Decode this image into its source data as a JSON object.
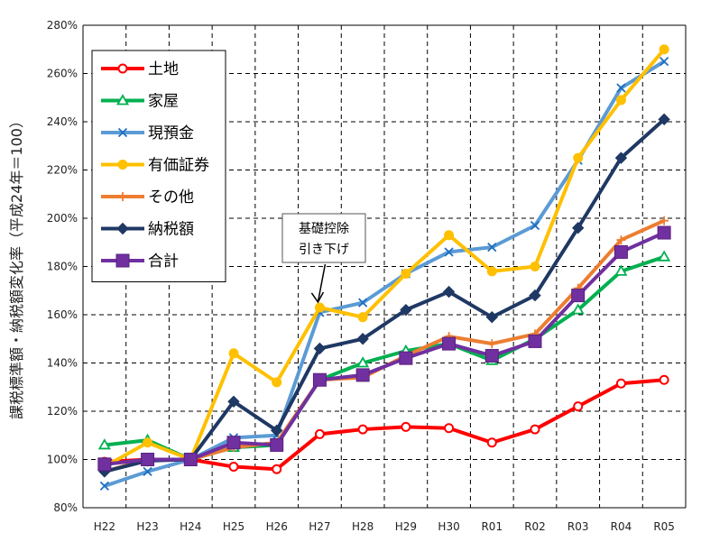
{
  "chart_data": {
    "type": "line",
    "title": "",
    "xlabel": "",
    "ylabel": "課税標準額・納税額変化率（平成24年＝100）",
    "categories": [
      "H22",
      "H23",
      "H24",
      "H25",
      "H26",
      "H27",
      "H28",
      "H29",
      "H30",
      "R01",
      "R02",
      "R03",
      "R04",
      "R05"
    ],
    "ylim": [
      80,
      280
    ],
    "yticks": [
      80,
      100,
      120,
      140,
      160,
      180,
      200,
      220,
      240,
      260,
      280
    ],
    "ytick_labels": [
      "80%",
      "100%",
      "120%",
      "140%",
      "160%",
      "180%",
      "200%",
      "220%",
      "240%",
      "260%",
      "280%"
    ],
    "grid": true,
    "legend_position": "top-left",
    "series": [
      {
        "name": "土地",
        "color": "#ff0000",
        "marker": "circle-open",
        "values": [
          99,
          100,
          100,
          97,
          96,
          110.5,
          112.5,
          113.5,
          113,
          107,
          112.5,
          122,
          131.5,
          133
        ]
      },
      {
        "name": "家屋",
        "color": "#00b050",
        "marker": "triangle-open",
        "values": [
          106,
          108,
          100,
          105,
          106,
          133,
          140,
          145,
          148,
          141,
          150,
          162,
          178,
          184
        ]
      },
      {
        "name": "現預金",
        "color": "#5b9bd5",
        "marker": "x",
        "values": [
          89,
          95,
          100,
          109,
          110,
          161,
          165,
          177,
          186,
          188,
          197,
          224,
          254,
          265
        ]
      },
      {
        "name": "有価証券",
        "color": "#ffc000",
        "marker": "circle-filled",
        "values": [
          97,
          107,
          100,
          144,
          132,
          163,
          159,
          177,
          193,
          178,
          180,
          225,
          249,
          270
        ]
      },
      {
        "name": "その他",
        "color": "#ed7d31",
        "marker": "plus",
        "values": [
          95,
          100,
          100,
          105,
          107,
          133,
          134,
          143,
          151,
          148,
          152,
          171,
          191,
          199
        ]
      },
      {
        "name": "納税額",
        "color": "#1f3864",
        "marker": "diamond",
        "values": [
          95,
          99.5,
          100,
          124,
          112,
          146,
          150,
          162,
          169.5,
          159,
          168,
          196,
          225,
          241
        ]
      },
      {
        "name": "合計",
        "color": "#7030a0",
        "marker": "square",
        "values": [
          98,
          100,
          100,
          107,
          106,
          133,
          135,
          142,
          148,
          143,
          149,
          168,
          186,
          194
        ]
      }
    ],
    "annotations": [
      {
        "text_lines": [
          "基礎控除",
          "引き下げ"
        ],
        "points_to": "H27"
      }
    ]
  }
}
